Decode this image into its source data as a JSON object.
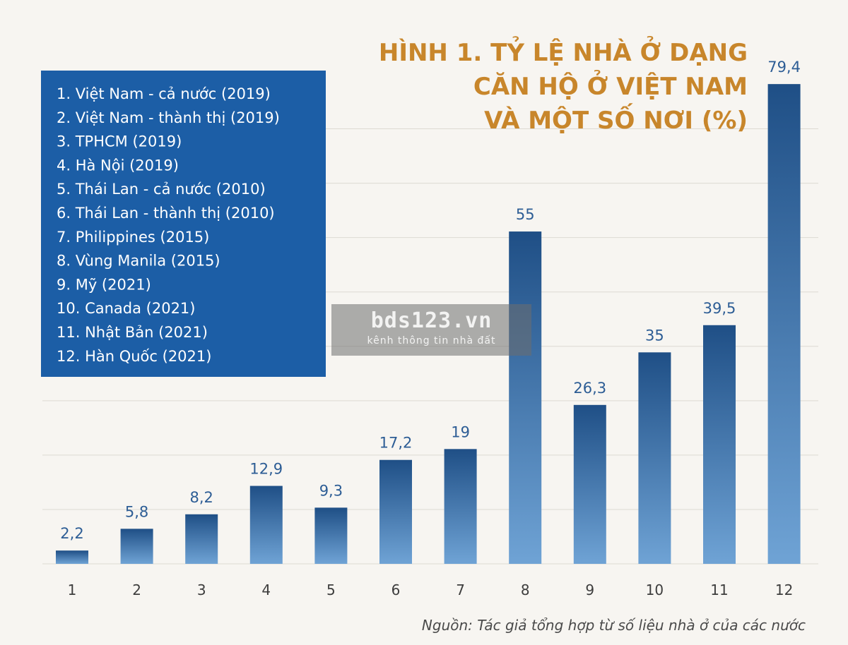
{
  "colors": {
    "title": "#c8862b",
    "bar_top": "#1f4f86",
    "bar_bottom": "#6fa3d5",
    "legend_bg": "#1c5ea6",
    "value_label": "#2d5d95",
    "grid": "#dddad3"
  },
  "chart_data": {
    "type": "bar",
    "title_lines": [
      "HÌNH 1. TỶ LỆ NHÀ Ở DẠNG",
      "CĂN HỘ Ở VIỆT NAM",
      "VÀ MỘT SỐ NƠI (%)"
    ],
    "categories": [
      "1",
      "2",
      "3",
      "4",
      "5",
      "6",
      "7",
      "8",
      "9",
      "10",
      "11",
      "12"
    ],
    "values": [
      2.2,
      5.8,
      8.2,
      12.9,
      9.3,
      17.2,
      19,
      55,
      26.3,
      35,
      39.5,
      79.4
    ],
    "value_labels": [
      "2,2",
      "5,8",
      "8,2",
      "12,9",
      "9,3",
      "17,2",
      "19",
      "55",
      "26,3",
      "35",
      "39,5",
      "79,4"
    ],
    "ylim": [
      0,
      80
    ],
    "grid": true,
    "legend_placement": "top-left",
    "legend_items": [
      "1. Việt Nam - cả nước (2019)",
      "2. Việt Nam - thành thị (2019)",
      "3. TPHCM (2019)",
      "4. Hà Nội (2019)",
      "5. Thái Lan - cả nước (2010)",
      "6. Thái Lan - thành thị (2010)",
      "7. Philippines (2015)",
      "8. Vùng Manila (2015)",
      "9. Mỹ (2021)",
      "10. Canada (2021)",
      "11. Nhật Bản (2021)",
      "12. Hàn Quốc (2021)"
    ],
    "source": "Nguồn: Tác giả tổng hợp từ số liệu nhà ở của các nước"
  },
  "watermark": {
    "main": "bds123.vn",
    "sub": "kênh thông tin nhà đất"
  }
}
